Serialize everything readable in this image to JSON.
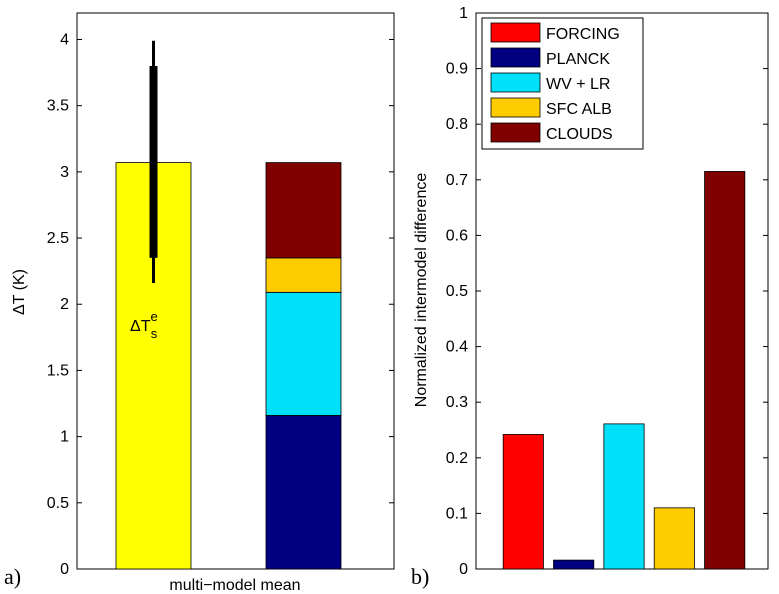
{
  "chart_data": [
    {
      "panel": "a)",
      "type": "bar",
      "xlabel": "multi−model mean",
      "ylabel": "ΔT (K)",
      "ylim": [
        0,
        4.2
      ],
      "yticks": [
        0,
        0.5,
        1,
        1.5,
        2,
        2.5,
        3,
        3.5,
        4
      ],
      "ytick_labels": [
        "0",
        "0.5",
        "1",
        "1.5",
        "2",
        "2.5",
        "3",
        "3.5",
        "4"
      ],
      "bars": [
        {
          "name": "ΔT_s^e",
          "annotation": {
            "base": "ΔT",
            "sup": "e",
            "sub": "s"
          },
          "value": 3.07,
          "color": "#ffff00",
          "error_thin": [
            2.16,
            3.99
          ],
          "error_thick": [
            2.35,
            3.8
          ]
        },
        {
          "name": "stacked",
          "segments": [
            {
              "name": "PLANCK",
              "from": 0,
              "to": 1.16,
              "color": "#000080"
            },
            {
              "name": "WV + LR",
              "from": 1.16,
              "to": 2.09,
              "color": "#00e0f8"
            },
            {
              "name": "SFC ALB",
              "from": 2.09,
              "to": 2.35,
              "color": "#ffcc00"
            },
            {
              "name": "CLOUDS",
              "from": 2.35,
              "to": 3.07,
              "color": "#800000"
            }
          ]
        }
      ]
    },
    {
      "panel": "b)",
      "type": "bar",
      "xlabel": "",
      "ylabel": "Normalized intermodel difference",
      "ylim": [
        0,
        1
      ],
      "yticks": [
        0,
        0.1,
        0.2,
        0.3,
        0.4,
        0.5,
        0.6,
        0.7,
        0.8,
        0.9,
        1
      ],
      "ytick_labels": [
        "0",
        "0.1",
        "0.2",
        "0.3",
        "0.4",
        "0.5",
        "0.6",
        "0.7",
        "0.8",
        "0.9",
        "1"
      ],
      "categories": [
        "FORCING",
        "PLANCK",
        "WV + LR",
        "SFC ALB",
        "CLOUDS"
      ],
      "values": [
        0.242,
        0.016,
        0.261,
        0.11,
        0.715
      ],
      "colors": [
        "#ff0000",
        "#000080",
        "#00e0f8",
        "#ffcc00",
        "#800000"
      ],
      "legend": {
        "placement": "top-left",
        "entries": [
          "FORCING",
          "PLANCK",
          "WV + LR",
          "SFC ALB",
          "CLOUDS"
        ]
      }
    }
  ]
}
